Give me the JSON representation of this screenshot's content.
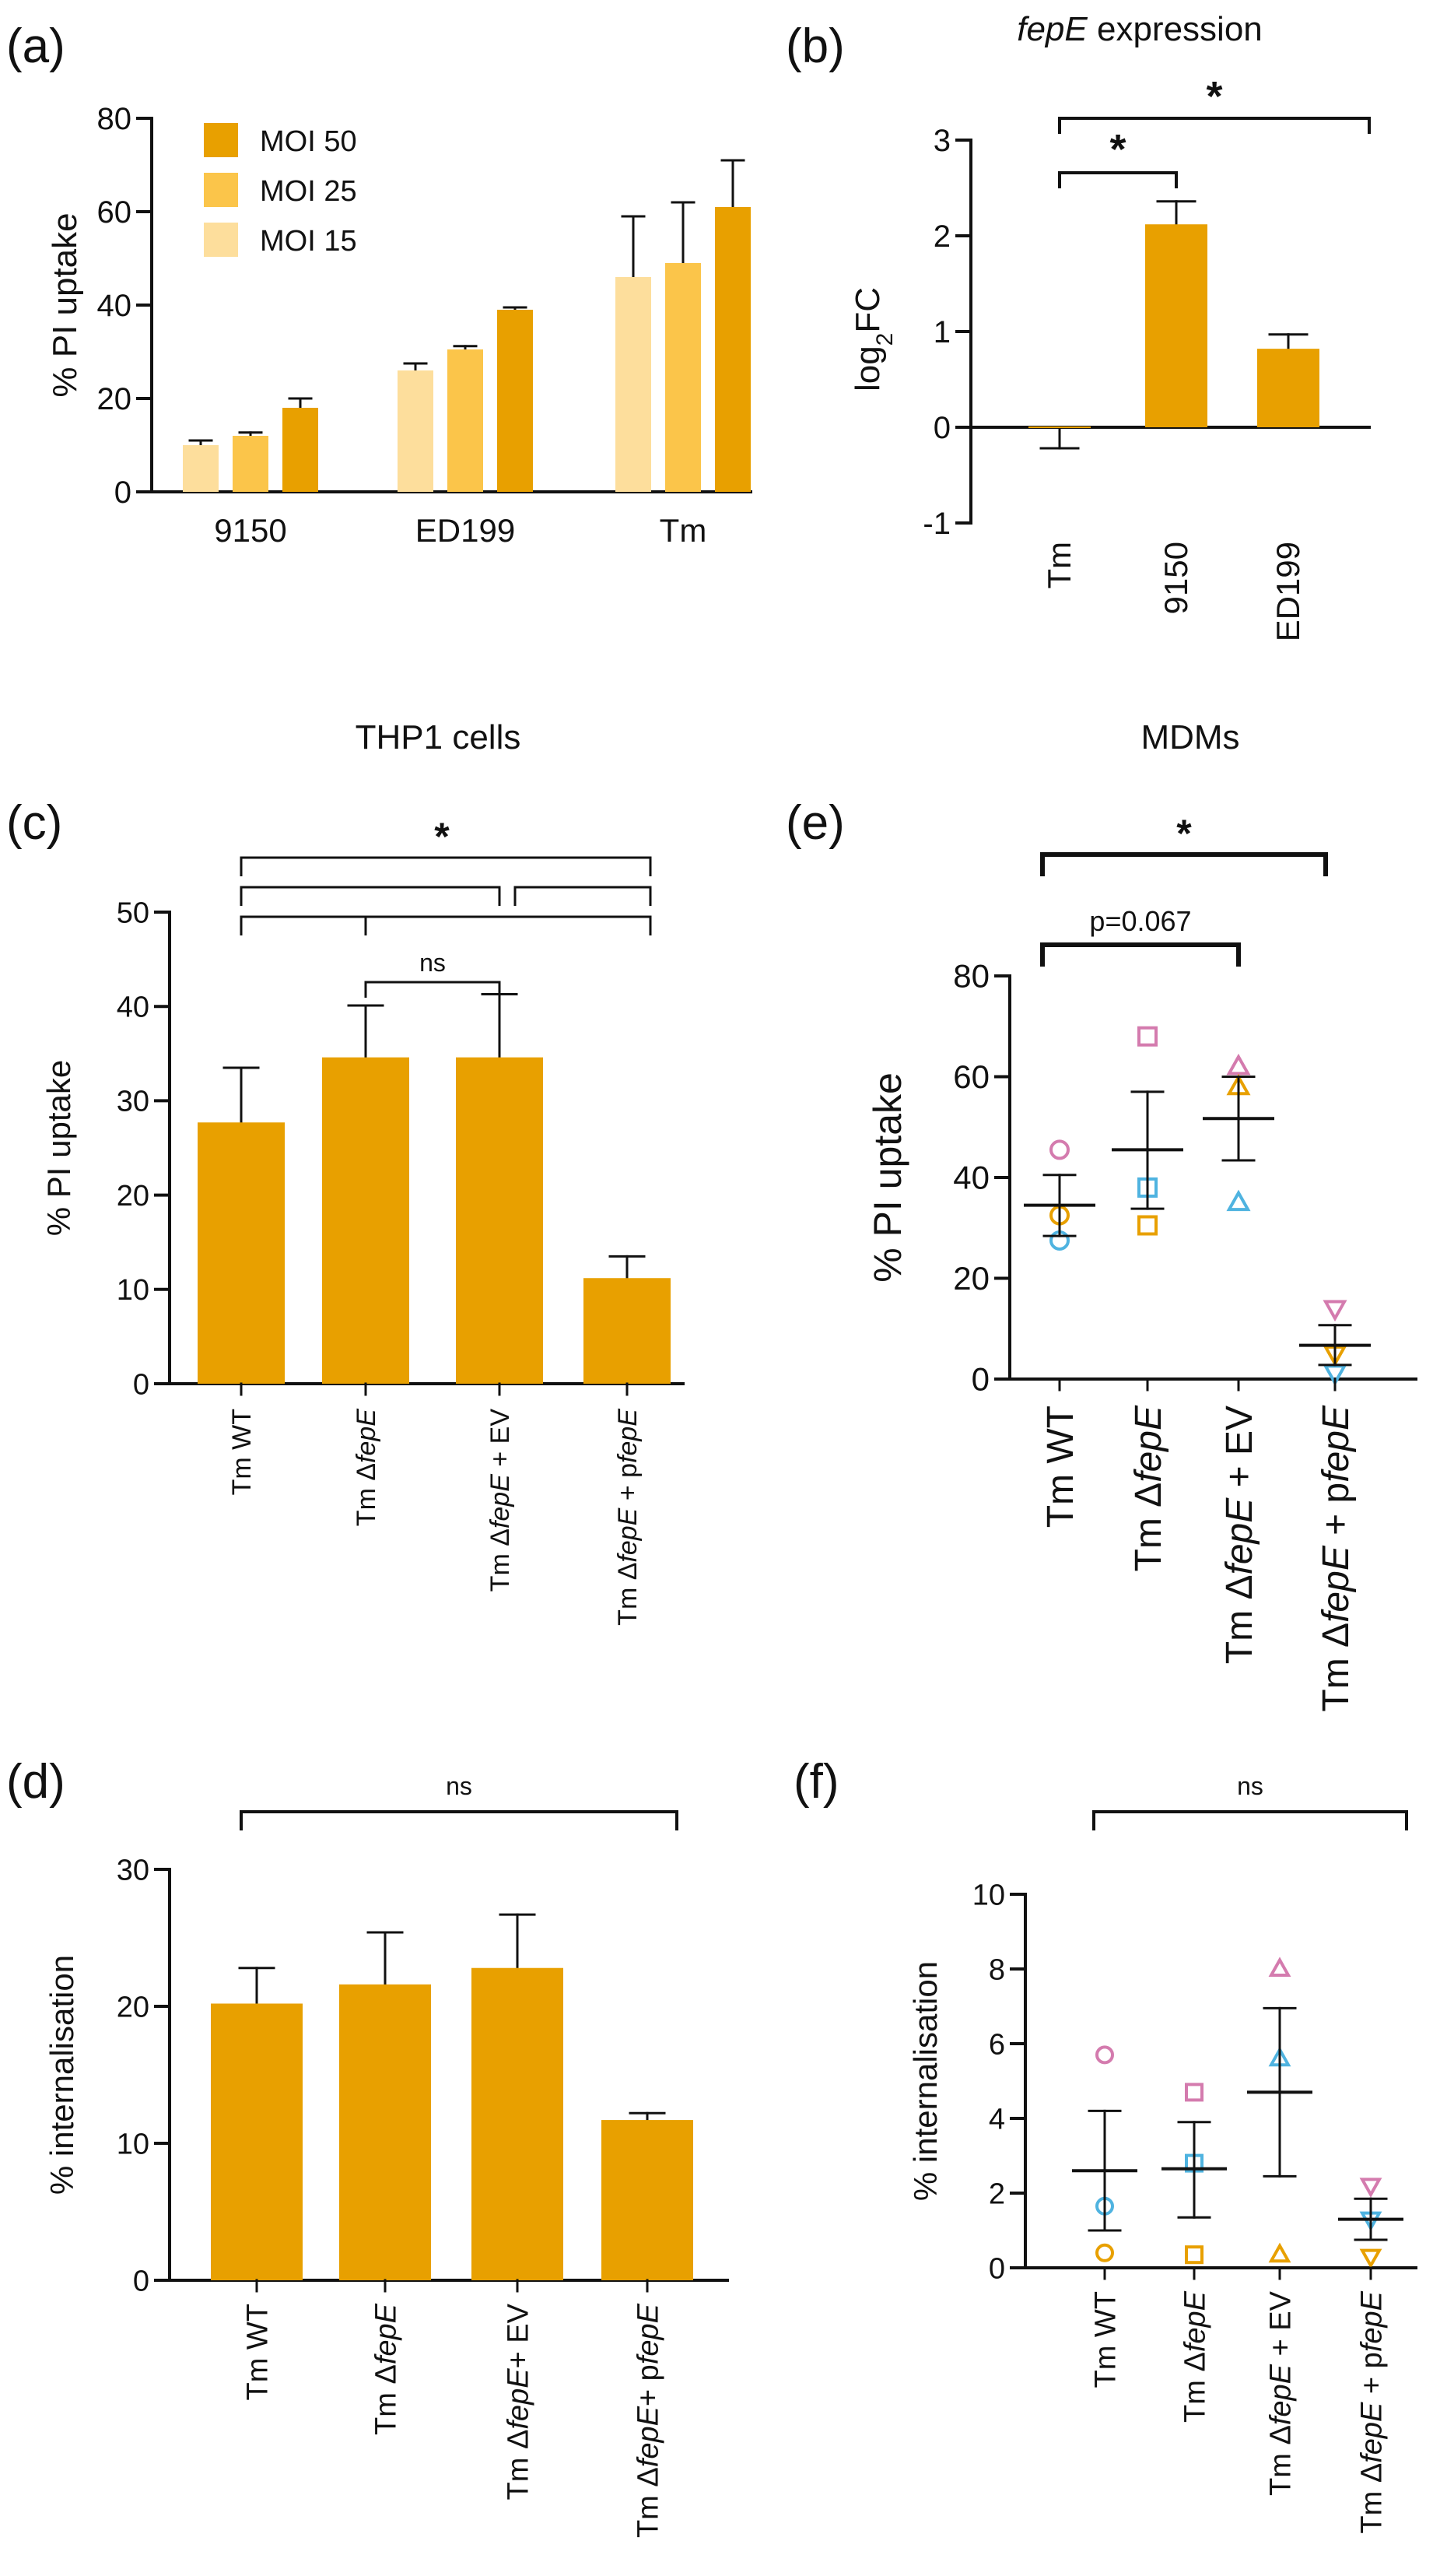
{
  "colors": {
    "moi50": "#E8A000",
    "moi25": "#FBC54A",
    "moi15": "#FDDE9C",
    "bar": "#E8A000",
    "point_pink": "#D47BAE",
    "point_blue": "#4FB3E0",
    "point_orange": "#E8A000",
    "axis": "#111111"
  },
  "panel_labels": {
    "a": "(a)",
    "b": "(b)",
    "c": "(c)",
    "d": "(d)",
    "e": "(e)",
    "f": "(f)"
  },
  "section_titles": {
    "thp1": "THP1 cells",
    "mdm": "MDMs"
  },
  "panel_b_title": {
    "italic": "fepE",
    "rest": " expression"
  },
  "chart_data": [
    {
      "id": "a",
      "type": "bar",
      "ylabel": "% PI uptake",
      "ylim": [
        0,
        80
      ],
      "yticks": [
        "0",
        "20",
        "40",
        "60",
        "80"
      ],
      "categories": [
        "9150",
        "ED199",
        "Tm"
      ],
      "legend": {
        "placement": "top-left",
        "entries": [
          "MOI 50",
          "MOI 25",
          "MOI 15"
        ]
      },
      "series": [
        {
          "name": "MOI 15",
          "values": [
            10,
            26,
            46
          ],
          "errors": [
            1,
            1.5,
            13
          ]
        },
        {
          "name": "MOI 25",
          "values": [
            12,
            30.5,
            49
          ],
          "errors": [
            0.7,
            0.7,
            13
          ]
        },
        {
          "name": "MOI 50",
          "values": [
            18,
            39,
            61
          ],
          "errors": [
            2,
            0.5,
            10
          ]
        }
      ]
    },
    {
      "id": "b",
      "type": "bar",
      "ylabel": {
        "base": "log",
        "sub": "2",
        "rest": "FC"
      },
      "ylim": [
        -1,
        3
      ],
      "yticks": [
        "-1",
        "0",
        "1",
        "2",
        "3"
      ],
      "categories": [
        "Tm",
        "9150",
        "ED199"
      ],
      "values": [
        0,
        2.12,
        0.82
      ],
      "errors": [
        0.22,
        0.24,
        0.15
      ],
      "significance": [
        "*",
        "*"
      ]
    },
    {
      "id": "c",
      "type": "bar",
      "ylabel": "% PI uptake",
      "ylim": [
        0,
        50
      ],
      "yticks": [
        "0",
        "10",
        "20",
        "30",
        "40",
        "50"
      ],
      "categories": [
        {
          "pre": "Tm WT",
          "ital": "",
          "post": ""
        },
        {
          "pre": "Tm Δ",
          "ital": "fepE",
          "post": ""
        },
        {
          "pre": "Tm Δ",
          "ital": "fepE",
          "post": " + EV"
        },
        {
          "pre": "Tm Δ",
          "ital": "fepE",
          "post": " + p",
          "ital2": "fepE"
        }
      ],
      "values": [
        27.7,
        34.6,
        34.6,
        11.2
      ],
      "errors": [
        5.8,
        5.5,
        6.7,
        2.3
      ],
      "significance": [
        "*",
        "ns"
      ]
    },
    {
      "id": "d",
      "type": "bar",
      "ylabel": "% internalisation",
      "ylim": [
        0,
        30
      ],
      "yticks": [
        "0",
        "10",
        "20",
        "30"
      ],
      "categories": [
        {
          "pre": "Tm WT",
          "ital": "",
          "post": ""
        },
        {
          "pre": "Tm Δ",
          "ital": "fepE",
          "post": ""
        },
        {
          "pre": "Tm Δ",
          "ital": "fepE",
          "post": "+ EV"
        },
        {
          "pre": "Tm Δ",
          "ital": "fepE",
          "post": "+ p",
          "ital2": "fepE"
        }
      ],
      "values": [
        20.2,
        21.6,
        22.8,
        11.7
      ],
      "errors": [
        2.6,
        3.8,
        3.9,
        0.5
      ],
      "significance": [
        "ns"
      ]
    },
    {
      "id": "e",
      "type": "scatter",
      "ylabel": "% PI uptake",
      "ylim": [
        0,
        80
      ],
      "yticks": [
        "0",
        "20",
        "40",
        "60",
        "80"
      ],
      "categories": [
        {
          "pre": "Tm WT",
          "ital": "",
          "post": ""
        },
        {
          "pre": "Tm Δ",
          "ital": "fepE",
          "post": ""
        },
        {
          "pre": "Tm Δ",
          "ital": "fepE",
          "post": " + EV"
        },
        {
          "pre": "Tm Δ",
          "ital": "fepE",
          "post": " + p",
          "ital2": "fepE"
        }
      ],
      "groups": [
        {
          "shape": "circle",
          "points": [
            [
              45.5,
              "pink"
            ],
            [
              32.5,
              "orange"
            ],
            [
              27.5,
              "blue"
            ]
          ],
          "mean": 34.5,
          "sem_low": 28.4,
          "sem_high": 40.5
        },
        {
          "shape": "square",
          "points": [
            [
              68,
              "pink"
            ],
            [
              38,
              "blue"
            ],
            [
              30.5,
              "orange"
            ]
          ],
          "mean": 45.5,
          "sem_low": 33.8,
          "sem_high": 57
        },
        {
          "shape": "triangle-up",
          "points": [
            [
              62,
              "pink"
            ],
            [
              58,
              "orange"
            ],
            [
              35,
              "blue"
            ]
          ],
          "mean": 51.7,
          "sem_low": 43.4,
          "sem_high": 60
        },
        {
          "shape": "triangle-down",
          "points": [
            [
              14,
              "pink"
            ],
            [
              5,
              "orange"
            ],
            [
              1.2,
              "blue"
            ]
          ],
          "mean": 6.7,
          "sem_low": 2.8,
          "sem_high": 10.7
        }
      ],
      "significance": [
        "*",
        "p=0.067"
      ]
    },
    {
      "id": "f",
      "type": "scatter",
      "ylabel": "% internalisation",
      "ylim": [
        0,
        10
      ],
      "yticks": [
        "0",
        "2",
        "4",
        "6",
        "8",
        "10"
      ],
      "categories": [
        {
          "pre": "Tm WT",
          "ital": "",
          "post": ""
        },
        {
          "pre": "Tm Δ",
          "ital": "fepE",
          "post": ""
        },
        {
          "pre": "Tm Δ",
          "ital": "fepE",
          "post": " + EV"
        },
        {
          "pre": "Tm Δ",
          "ital": "fepE",
          "post": " + p",
          "ital2": "fepE"
        }
      ],
      "groups": [
        {
          "shape": "circle",
          "points": [
            [
              5.7,
              "pink"
            ],
            [
              1.65,
              "blue"
            ],
            [
              0.4,
              "orange"
            ]
          ],
          "mean": 2.6,
          "sem_low": 1.0,
          "sem_high": 4.2
        },
        {
          "shape": "square",
          "points": [
            [
              4.7,
              "pink"
            ],
            [
              2.8,
              "blue"
            ],
            [
              0.35,
              "orange"
            ]
          ],
          "mean": 2.65,
          "sem_low": 1.35,
          "sem_high": 3.9
        },
        {
          "shape": "triangle-up",
          "points": [
            [
              8.0,
              "pink"
            ],
            [
              5.6,
              "blue"
            ],
            [
              0.35,
              "orange"
            ]
          ],
          "mean": 4.7,
          "sem_low": 2.45,
          "sem_high": 6.95
        },
        {
          "shape": "triangle-down",
          "points": [
            [
              2.2,
              "pink"
            ],
            [
              1.3,
              "blue"
            ],
            [
              0.3,
              "orange"
            ]
          ],
          "mean": 1.3,
          "sem_low": 0.75,
          "sem_high": 1.85
        }
      ],
      "significance": [
        "ns"
      ]
    }
  ]
}
